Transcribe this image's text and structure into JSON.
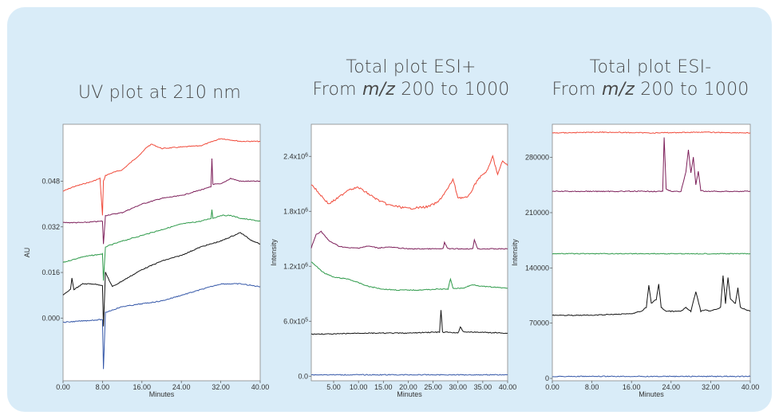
{
  "colors": {
    "background": "#d9ecf8",
    "red": "#f04a3a",
    "purple": "#7d1f5a",
    "green": "#2e9a4a",
    "black": "#141414",
    "blue": "#3457a8"
  },
  "chart_data": [
    {
      "type": "line",
      "title": "UV plot at 210 nm",
      "subtitle": "",
      "xlabel": "Minutes",
      "ylabel": "AU",
      "xlim": [
        0,
        40
      ],
      "ylim": [
        -0.022,
        0.068
      ],
      "x_ticks": [
        "0.00",
        "8.00",
        "16.00",
        "24.00",
        "32.00",
        "40.00"
      ],
      "x_tick_values": [
        0,
        8,
        16,
        24,
        32,
        40
      ],
      "y_ticks": [
        "0.000",
        "0.016",
        "0.032",
        "0.048"
      ],
      "y_tick_values": [
        0,
        0.016,
        0.032,
        0.048
      ],
      "grid": false,
      "series": [
        {
          "color": "red",
          "x": [
            0,
            2,
            4,
            6,
            7.5,
            8.0,
            8.2,
            8.6,
            10,
            12,
            14,
            16,
            17,
            18,
            20,
            24,
            28,
            32,
            36,
            40
          ],
          "y": [
            0.0445,
            0.046,
            0.047,
            0.048,
            0.049,
            0.036,
            0.048,
            0.05,
            0.051,
            0.052,
            0.055,
            0.058,
            0.06,
            0.061,
            0.0595,
            0.06,
            0.0605,
            0.063,
            0.062,
            0.062
          ]
        },
        {
          "color": "purple",
          "x": [
            0,
            4,
            8,
            8.2,
            8.6,
            12,
            16,
            20,
            24,
            28,
            30,
            30.2,
            30.4,
            32,
            34,
            36,
            40
          ],
          "y": [
            0.0335,
            0.0335,
            0.034,
            0.026,
            0.036,
            0.037,
            0.04,
            0.042,
            0.043,
            0.045,
            0.046,
            0.056,
            0.047,
            0.047,
            0.049,
            0.048,
            0.048
          ]
        },
        {
          "color": "green",
          "x": [
            0,
            4,
            8,
            8.2,
            8.6,
            12,
            16,
            20,
            24,
            28,
            30,
            30.2,
            30.4,
            32,
            34,
            36,
            40
          ],
          "y": [
            0.0195,
            0.0215,
            0.0225,
            0.013,
            0.025,
            0.027,
            0.029,
            0.031,
            0.033,
            0.034,
            0.035,
            0.038,
            0.035,
            0.036,
            0.036,
            0.035,
            0.034
          ]
        },
        {
          "color": "black",
          "x": [
            0,
            1.5,
            1.8,
            2.2,
            4,
            6,
            8,
            8.2,
            8.6,
            10,
            12,
            16,
            20,
            24,
            28,
            32,
            36,
            38,
            40
          ],
          "y": [
            0.008,
            0.01,
            0.014,
            0.01,
            0.012,
            0.012,
            0.0115,
            -0.003,
            0.016,
            0.011,
            0.013,
            0.017,
            0.02,
            0.022,
            0.025,
            0.027,
            0.03,
            0.0275,
            0.026
          ]
        },
        {
          "color": "blue",
          "x": [
            0,
            4,
            8,
            8.2,
            8.6,
            12,
            16,
            20,
            24,
            28,
            32,
            36,
            40
          ],
          "y": [
            -0.0015,
            -0.001,
            -0.0005,
            -0.018,
            0.002,
            0.004,
            0.005,
            0.006,
            0.008,
            0.01,
            0.012,
            0.012,
            0.011
          ]
        }
      ]
    },
    {
      "type": "line",
      "title": "Total plot ESI+",
      "subtitle_prefix": "From",
      "subtitle_unit": "m/z",
      "subtitle_range": "200 to 1000",
      "xlabel": "Minutes",
      "ylabel": "Intensity",
      "xlim": [
        0.5,
        40
      ],
      "ylim": [
        -50000,
        2750000
      ],
      "x_ticks": [
        "5.00",
        "10.00",
        "15.00",
        "20.00",
        "25.00",
        "30.00",
        "35.00",
        "40.00"
      ],
      "x_tick_values": [
        5,
        10,
        15,
        20,
        25,
        30,
        35,
        40
      ],
      "y_tick_values": [
        0,
        600000,
        1200000,
        1800000,
        2400000
      ],
      "y_ticks": [
        {
          "base": "0.0",
          "exp": ""
        },
        {
          "base": "6.0x10",
          "exp": "5"
        },
        {
          "base": "1.2x10",
          "exp": "6"
        },
        {
          "base": "1.8x10",
          "exp": "6"
        },
        {
          "base": "2.4x10",
          "exp": "6"
        }
      ],
      "grid": false,
      "series": [
        {
          "color": "red",
          "x": [
            0.5,
            2,
            4,
            6,
            8,
            10,
            12,
            14,
            16,
            20,
            24,
            26,
            28,
            29,
            30,
            32,
            34,
            36,
            37,
            38,
            39,
            40
          ],
          "y": [
            2100000,
            2000000,
            1880000,
            1950000,
            2040000,
            2060000,
            1990000,
            1920000,
            1870000,
            1830000,
            1850000,
            1900000,
            2050000,
            2150000,
            1950000,
            1950000,
            2150000,
            2250000,
            2400000,
            2200000,
            2350000,
            2300000
          ]
        },
        {
          "color": "purple",
          "x": [
            0.5,
            1.5,
            2.5,
            4,
            6,
            8,
            10,
            12,
            14,
            16,
            20,
            27,
            27.3,
            28,
            33,
            33.3,
            34,
            40
          ],
          "y": [
            1400000,
            1550000,
            1580000,
            1480000,
            1420000,
            1400000,
            1400000,
            1420000,
            1400000,
            1410000,
            1390000,
            1390000,
            1460000,
            1390000,
            1390000,
            1490000,
            1390000,
            1390000
          ]
        },
        {
          "color": "green",
          "x": [
            0.5,
            1.5,
            3,
            5,
            8,
            10,
            12,
            15,
            18,
            22,
            26,
            28,
            28.5,
            29,
            31,
            33,
            35,
            40
          ],
          "y": [
            1250000,
            1200000,
            1130000,
            1080000,
            1060000,
            1020000,
            980000,
            950000,
            940000,
            940000,
            950000,
            950000,
            1060000,
            960000,
            960000,
            1000000,
            980000,
            960000
          ]
        },
        {
          "color": "black",
          "x": [
            0.5,
            5,
            10,
            15,
            20,
            25,
            26.3,
            26.6,
            26.9,
            28,
            30,
            30.5,
            31,
            32,
            34,
            40
          ],
          "y": [
            460000,
            460000,
            470000,
            470000,
            470000,
            480000,
            480000,
            720000,
            480000,
            480000,
            470000,
            540000,
            490000,
            480000,
            480000,
            470000
          ]
        },
        {
          "color": "blue",
          "x": [
            0.5,
            10,
            20,
            30,
            40
          ],
          "y": [
            15000,
            15000,
            15000,
            15000,
            15000
          ]
        }
      ]
    },
    {
      "type": "line",
      "title": "Total plot ESI-",
      "subtitle_prefix": "From",
      "subtitle_unit": "m/z",
      "subtitle_range": "200 to 1000",
      "xlabel": "Minutes",
      "ylabel": "Intensity",
      "xlim": [
        0,
        40
      ],
      "ylim": [
        -3000,
        322000
      ],
      "x_ticks": [
        "0.00",
        "8.00",
        "16.00",
        "24.00",
        "32.00",
        "40.00"
      ],
      "x_tick_values": [
        0,
        8,
        16,
        24,
        32,
        40
      ],
      "y_ticks": [
        "0",
        "70000",
        "140000",
        "210000",
        "280000"
      ],
      "y_tick_values": [
        0,
        70000,
        140000,
        210000,
        280000
      ],
      "grid": false,
      "series": [
        {
          "color": "red",
          "x": [
            0,
            10,
            20,
            30,
            40
          ],
          "y": [
            311000,
            312000,
            311000,
            312000,
            311000
          ]
        },
        {
          "color": "purple",
          "x": [
            0,
            10,
            20,
            22,
            22.3,
            22.6,
            23,
            24,
            26,
            27,
            27.5,
            28,
            28.5,
            29,
            29.5,
            30,
            31,
            32,
            40
          ],
          "y": [
            237000,
            237000,
            237000,
            237000,
            237000,
            305000,
            240000,
            237000,
            237000,
            262000,
            290000,
            260000,
            280000,
            245000,
            262000,
            238000,
            237000,
            237000,
            237000
          ]
        },
        {
          "color": "green",
          "x": [
            0,
            10,
            20,
            30,
            40
          ],
          "y": [
            158000,
            158000,
            158000,
            158000,
            158000
          ]
        },
        {
          "color": "black",
          "x": [
            0,
            8,
            16,
            18,
            19,
            19.5,
            20,
            21,
            21.5,
            22,
            23,
            26,
            27,
            28,
            29,
            30,
            31,
            32,
            34,
            34.5,
            35,
            35.5,
            36,
            37,
            37.5,
            38,
            40
          ],
          "y": [
            80000,
            80000,
            82000,
            85000,
            90000,
            118000,
            95000,
            100000,
            120000,
            90000,
            85000,
            85000,
            90000,
            85000,
            110000,
            85000,
            87000,
            85000,
            90000,
            130000,
            95000,
            128000,
            100000,
            95000,
            115000,
            90000,
            85000
          ]
        },
        {
          "color": "blue",
          "x": [
            0,
            10,
            20,
            30,
            40
          ],
          "y": [
            2500,
            2500,
            2500,
            2500,
            2500
          ]
        }
      ]
    }
  ]
}
